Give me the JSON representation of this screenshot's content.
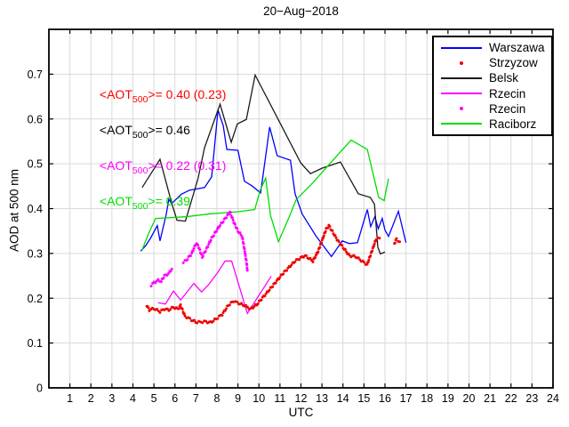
{
  "chart_data": {
    "type": "line",
    "title": "20−Aug−2018",
    "xlabel": "UTC",
    "ylabel": "AOD at 500 nm",
    "xlim": [
      0,
      24
    ],
    "ylim": [
      0,
      0.8
    ],
    "grid": true,
    "grid_color": "#d9d9d9",
    "axis_color": "#000000",
    "x_ticks": [
      "1",
      "2",
      "3",
      "4",
      "5",
      "6",
      "7",
      "8",
      "9",
      "10",
      "11",
      "12",
      "13",
      "14",
      "15",
      "16",
      "17",
      "18",
      "19",
      "20",
      "21",
      "22",
      "23",
      "24"
    ],
    "y_ticks": [
      0,
      0.1,
      0.2,
      0.3,
      0.4,
      0.5,
      0.6,
      0.7
    ],
    "y_tick_labels": [
      "0",
      "0.1",
      "0.2",
      "0.3",
      "0.4",
      "0.5",
      "0.6",
      "0.7"
    ],
    "legend": {
      "position": "top-right",
      "items": [
        {
          "label": "Warszawa",
          "glyph": "line",
          "color": "#0000ff"
        },
        {
          "label": "Strzyzow",
          "glyph": "dot",
          "color": "#ee0000"
        },
        {
          "label": "Belsk",
          "glyph": "line",
          "color": "#1a1a1a"
        },
        {
          "label": "Rzecin",
          "glyph": "line",
          "color": "#ff00ff"
        },
        {
          "label": "Rzecin",
          "glyph": "dot",
          "color": "#ff00ff"
        },
        {
          "label": "Raciborz",
          "glyph": "line",
          "color": "#00dd00"
        }
      ]
    },
    "series": [
      {
        "name": "Warszawa",
        "type": "line",
        "color": "#0000ff",
        "x": [
          4.37,
          4.62,
          4.85,
          5.16,
          5.29,
          5.59,
          5.71,
          5.84,
          6.3,
          6.69,
          7.41,
          7.75,
          8.05,
          8.3,
          8.47,
          9.0,
          9.31,
          9.66,
          10.08,
          10.51,
          10.87,
          11.5,
          11.72,
          12.06,
          12.7,
          13.45,
          13.97,
          14.3,
          14.69,
          15.16,
          15.32,
          15.52,
          15.68,
          15.87,
          16.0,
          16.17,
          16.64,
          17.0
        ],
        "y": [
          0.305,
          0.318,
          0.335,
          0.362,
          0.328,
          0.388,
          0.421,
          0.411,
          0.432,
          0.441,
          0.447,
          0.471,
          0.62,
          0.585,
          0.532,
          0.53,
          0.461,
          0.451,
          0.435,
          0.582,
          0.518,
          0.508,
          0.433,
          0.388,
          0.34,
          0.293,
          0.328,
          0.322,
          0.324,
          0.398,
          0.36,
          0.382,
          0.355,
          0.378,
          0.352,
          0.338,
          0.394,
          0.324
        ]
      },
      {
        "name": "Belsk",
        "type": "line",
        "color": "#1a1a1a",
        "x": [
          4.44,
          5.29,
          5.84,
          6.1,
          6.5,
          7.1,
          7.41,
          8.15,
          8.68,
          8.97,
          9.4,
          9.82,
          11.99,
          12.45,
          13.0,
          13.88,
          14.73,
          15.3,
          15.5,
          15.66,
          15.78,
          16.0
        ],
        "y": [
          0.447,
          0.51,
          0.413,
          0.374,
          0.372,
          0.467,
          0.536,
          0.633,
          0.548,
          0.589,
          0.599,
          0.698,
          0.502,
          0.478,
          0.49,
          0.504,
          0.433,
          0.425,
          0.41,
          0.314,
          0.299,
          0.303
        ]
      },
      {
        "name": "Raciborz",
        "type": "line",
        "color": "#00dd00",
        "x": [
          4.44,
          4.75,
          5.08,
          6.56,
          7.6,
          9.0,
          9.8,
          10.05,
          10.32,
          10.55,
          10.93,
          11.5,
          11.77,
          12.57,
          13.33,
          14.39,
          15.16,
          15.7,
          15.96,
          16.17
        ],
        "y": [
          0.308,
          0.345,
          0.378,
          0.382,
          0.388,
          0.393,
          0.398,
          0.44,
          0.468,
          0.385,
          0.326,
          0.388,
          0.42,
          0.458,
          0.498,
          0.553,
          0.532,
          0.425,
          0.418,
          0.467
        ]
      },
      {
        "name": "Rzecin",
        "type": "line",
        "color": "#ff00ff",
        "x": [
          5.2,
          5.55,
          5.93,
          6.27,
          6.9,
          7.27,
          7.6,
          8.0,
          8.39,
          8.7,
          9.45,
          10.58
        ],
        "y": [
          0.19,
          0.187,
          0.216,
          0.196,
          0.233,
          0.214,
          0.23,
          0.255,
          0.283,
          0.283,
          0.166,
          0.249
        ]
      },
      {
        "name": "Strzyzow",
        "type": "dots",
        "color": "#ee0000",
        "segments": [
          {
            "x": [
              4.66,
              4.78,
              5.0,
              5.29,
              5.5,
              5.71,
              5.93,
              6.14,
              6.27,
              6.48,
              6.86,
              7.05,
              7.4,
              7.7,
              7.96,
              8.25,
              8.54,
              8.8,
              8.97,
              9.31,
              9.6,
              9.9,
              10.5,
              11.1,
              11.72,
              12.19,
              12.57,
              12.82,
              13.2,
              13.33,
              13.76,
              14.31,
              14.6,
              15.15,
              15.58,
              15.74
            ],
            "y": [
              0.184,
              0.174,
              0.177,
              0.17,
              0.176,
              0.174,
              0.18,
              0.176,
              0.184,
              0.16,
              0.15,
              0.146,
              0.148,
              0.146,
              0.154,
              0.164,
              0.184,
              0.194,
              0.19,
              0.184,
              0.176,
              0.186,
              0.219,
              0.253,
              0.283,
              0.295,
              0.283,
              0.305,
              0.354,
              0.362,
              0.328,
              0.295,
              0.293,
              0.275,
              0.332,
              0.334
            ]
          },
          {
            "x": [
              16.45,
              16.55,
              16.7
            ],
            "y": [
              0.322,
              0.332,
              0.326
            ]
          }
        ]
      },
      {
        "name": "Rzecin",
        "type": "dots",
        "color": "#ff00ff",
        "segments": [
          {
            "x": [
              4.87,
              5.0,
              5.2,
              5.35,
              5.5,
              5.7,
              5.85
            ],
            "y": [
              0.229,
              0.235,
              0.24,
              0.238,
              0.25,
              0.255,
              0.265
            ]
          },
          {
            "x": [
              6.4,
              6.55,
              6.8,
              7.0,
              7.1,
              7.3,
              7.5,
              7.75,
              7.9,
              8.1,
              8.35,
              8.5,
              8.62,
              8.8,
              9.0,
              9.2,
              9.3,
              9.4,
              9.45
            ],
            "y": [
              0.28,
              0.285,
              0.3,
              0.322,
              0.318,
              0.292,
              0.31,
              0.334,
              0.345,
              0.36,
              0.375,
              0.385,
              0.393,
              0.37,
              0.35,
              0.338,
              0.312,
              0.283,
              0.262
            ]
          }
        ]
      }
    ],
    "annotations": [
      {
        "pre": "<AOT",
        "sub": "500",
        "post": ">= 0.40 (0.23)",
        "color": "#ff0000",
        "x": 2.41,
        "y": 0.653
      },
      {
        "pre": "<AOT",
        "sub": "500",
        "post": ">= 0.46",
        "color": "#000000",
        "x": 2.41,
        "y": 0.574
      },
      {
        "pre": "<AOT",
        "sub": "500",
        "post": ">= 0.22 (0.31)",
        "color": "#ff00ff",
        "x": 2.41,
        "y": 0.494
      },
      {
        "pre": "<AOT",
        "sub": "500",
        "post": ">= 0.39",
        "color": "#00dd00",
        "x": 2.41,
        "y": 0.415
      }
    ]
  }
}
